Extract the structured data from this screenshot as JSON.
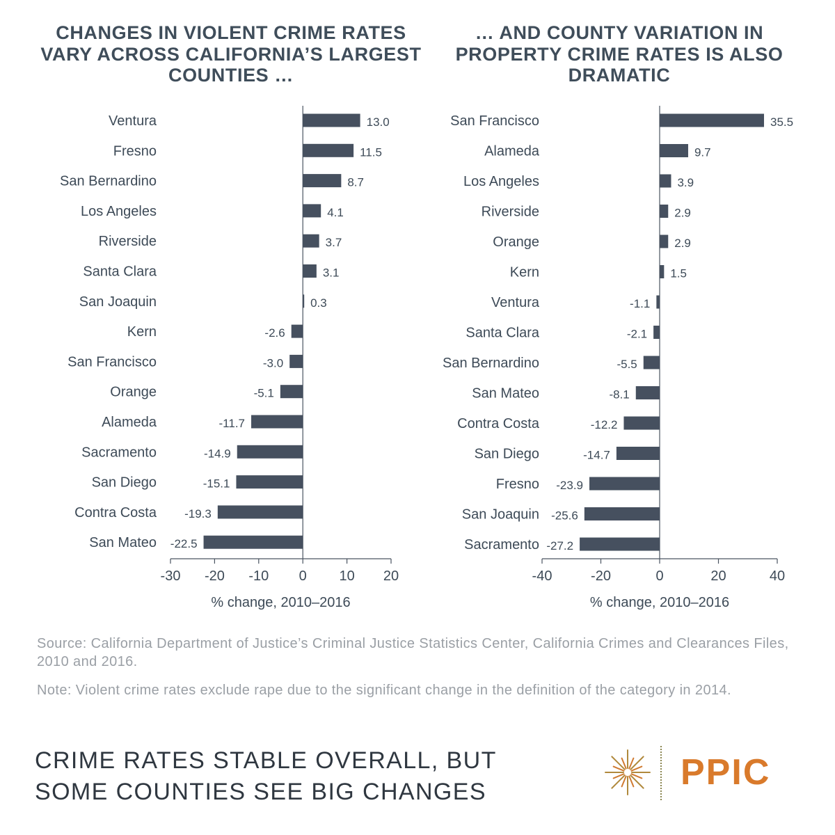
{
  "panels": [
    {
      "title": "CHANGES IN VIOLENT CRIME RATES VARY ACROSS CALIFORNIA’S LARGEST COUNTIES …",
      "categories": [
        "Ventura",
        "Fresno",
        "San Bernardino",
        "Los Angeles",
        "Riverside",
        "Santa Clara",
        "San Joaquin",
        "Kern",
        "San Francisco",
        "Orange",
        "Alameda",
        "Sacramento",
        "San Diego",
        "Contra Costa",
        "San Mateo"
      ],
      "values": [
        13.0,
        11.5,
        8.7,
        4.1,
        3.7,
        3.1,
        0.3,
        -2.6,
        -3.0,
        -5.1,
        -11.7,
        -14.9,
        -15.1,
        -19.3,
        -22.5
      ],
      "value_labels": [
        "13.0",
        "11.5",
        "8.7",
        "4.1",
        "3.7",
        "3.1",
        "0.3",
        "-2.6",
        "-3.0",
        "-5.1",
        "-11.7",
        "-14.9",
        "-15.1",
        "-19.3",
        "-22.5"
      ],
      "xlim": [
        -30,
        20
      ],
      "ticks": [
        -30,
        -20,
        -10,
        0,
        10,
        20
      ],
      "tick_labels": [
        "-30",
        "-20",
        "-10",
        "0",
        "10",
        "20"
      ],
      "xlabel": "% change, 2010–2016"
    },
    {
      "title": "… AND COUNTY VARIATION IN PROPERTY CRIME RATES IS ALSO DRAMATIC",
      "categories": [
        "San Francisco",
        "Alameda",
        "Los Angeles",
        "Riverside",
        "Orange",
        "Kern",
        "Ventura",
        "Santa Clara",
        "San Bernardino",
        "San Mateo",
        "Contra Costa",
        "San Diego",
        "Fresno",
        "San Joaquin",
        "Sacramento"
      ],
      "values": [
        35.5,
        9.7,
        3.9,
        2.9,
        2.9,
        1.5,
        -1.1,
        -2.1,
        -5.5,
        -8.1,
        -12.2,
        -14.7,
        -23.9,
        -25.6,
        -27.2
      ],
      "value_labels": [
        "35.5",
        "9.7",
        "3.9",
        "2.9",
        "2.9",
        "1.5",
        "-1.1",
        "-2.1",
        "-5.5",
        "-8.1",
        "-12.2",
        "-14.7",
        "-23.9",
        "-25.6",
        "-27.2"
      ],
      "xlim": [
        -40,
        40
      ],
      "ticks": [
        -40,
        -20,
        0,
        20,
        40
      ],
      "tick_labels": [
        "-40",
        "-20",
        "0",
        "20",
        "40"
      ],
      "xlabel": "% change, 2010–2016"
    }
  ],
  "chart_data": [
    {
      "type": "bar",
      "orientation": "horizontal",
      "title": "CHANGES IN VIOLENT CRIME RATES VARY ACROSS CALIFORNIA’S LARGEST COUNTIES …",
      "categories": [
        "Ventura",
        "Fresno",
        "San Bernardino",
        "Los Angeles",
        "Riverside",
        "Santa Clara",
        "San Joaquin",
        "Kern",
        "San Francisco",
        "Orange",
        "Alameda",
        "Sacramento",
        "San Diego",
        "Contra Costa",
        "San Mateo"
      ],
      "values": [
        13.0,
        11.5,
        8.7,
        4.1,
        3.7,
        3.1,
        0.3,
        -2.6,
        -3.0,
        -5.1,
        -11.7,
        -14.9,
        -15.1,
        -19.3,
        -22.5
      ],
      "xlabel": "% change, 2010–2016",
      "ylabel": "",
      "xlim": [
        -30,
        20
      ],
      "grid": false,
      "bar_color": "#46505f"
    },
    {
      "type": "bar",
      "orientation": "horizontal",
      "title": "… AND COUNTY VARIATION IN PROPERTY CRIME RATES IS ALSO DRAMATIC",
      "categories": [
        "San Francisco",
        "Alameda",
        "Los Angeles",
        "Riverside",
        "Orange",
        "Kern",
        "Ventura",
        "Santa Clara",
        "San Bernardino",
        "San Mateo",
        "Contra Costa",
        "San Diego",
        "Fresno",
        "San Joaquin",
        "Sacramento"
      ],
      "values": [
        35.5,
        9.7,
        3.9,
        2.9,
        2.9,
        1.5,
        -1.1,
        -2.1,
        -5.5,
        -8.1,
        -12.2,
        -14.7,
        -23.9,
        -25.6,
        -27.2
      ],
      "xlabel": "% change, 2010–2016",
      "ylabel": "",
      "xlim": [
        -40,
        40
      ],
      "grid": false,
      "bar_color": "#46505f"
    }
  ],
  "footer": {
    "source": "Source: California Department of Justice’s Criminal Justice Statistics Center, California Crimes and Clearances Files, 2010 and 2016.",
    "note": "Note: Violent crime rates exclude rape due to the significant change in the definition of the category in 2014.",
    "headline": "CRIME RATES STABLE OVERALL, BUT SOME COUNTIES SEE BIG CHANGES"
  },
  "logo": {
    "text": "PPIC",
    "icon": "sunburst-icon",
    "color": "#d97a2b"
  },
  "colors": {
    "bar": "#46505f",
    "text": "#3d4a57",
    "muted": "#9a9fa5",
    "accent": "#d97a2b"
  }
}
